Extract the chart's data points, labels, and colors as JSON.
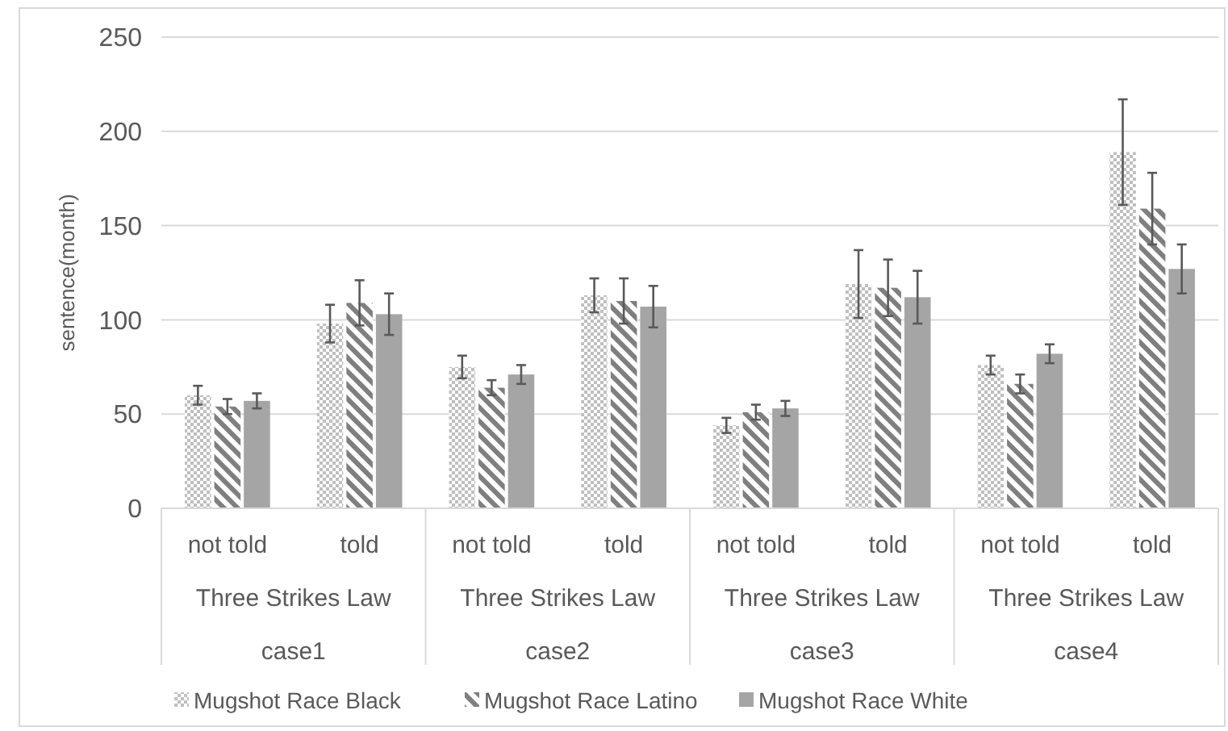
{
  "chart_data": {
    "type": "bar",
    "ylabel": "sentence(month)",
    "categories": [
      "not told",
      "told",
      "not told",
      "told",
      "not told",
      "told",
      "not told",
      "told"
    ],
    "annotations": [
      "Three Strikes Law",
      "Three Strikes Law",
      "Three Strikes Law",
      "Three Strikes Law",
      "case1",
      "case2",
      "case3",
      "case4"
    ],
    "series": [
      {
        "name": "Mugshot Race Black",
        "color": "#bfbfbf",
        "values": [
          60,
          98,
          75,
          113,
          44,
          119,
          76,
          189
        ],
        "errors": [
          5,
          10,
          6,
          9,
          4,
          18,
          5,
          28
        ]
      },
      {
        "name": "Mugshot Race Latino",
        "color": "#7f7f7f",
        "values": [
          54,
          109,
          64,
          110,
          51,
          117,
          66,
          159
        ],
        "errors": [
          4,
          12,
          4,
          12,
          4,
          15,
          5,
          19
        ]
      },
      {
        "name": "Mugshot Race White",
        "color": "#a5a5a5",
        "values": [
          57,
          103,
          71,
          107,
          53,
          112,
          82,
          127
        ],
        "errors": [
          4,
          11,
          5,
          11,
          4,
          14,
          5,
          13
        ]
      }
    ],
    "ylim": [
      0,
      250
    ],
    "yticks": [
      0,
      50,
      100,
      150,
      200,
      250
    ],
    "grid": "y",
    "legend": "bottom"
  }
}
